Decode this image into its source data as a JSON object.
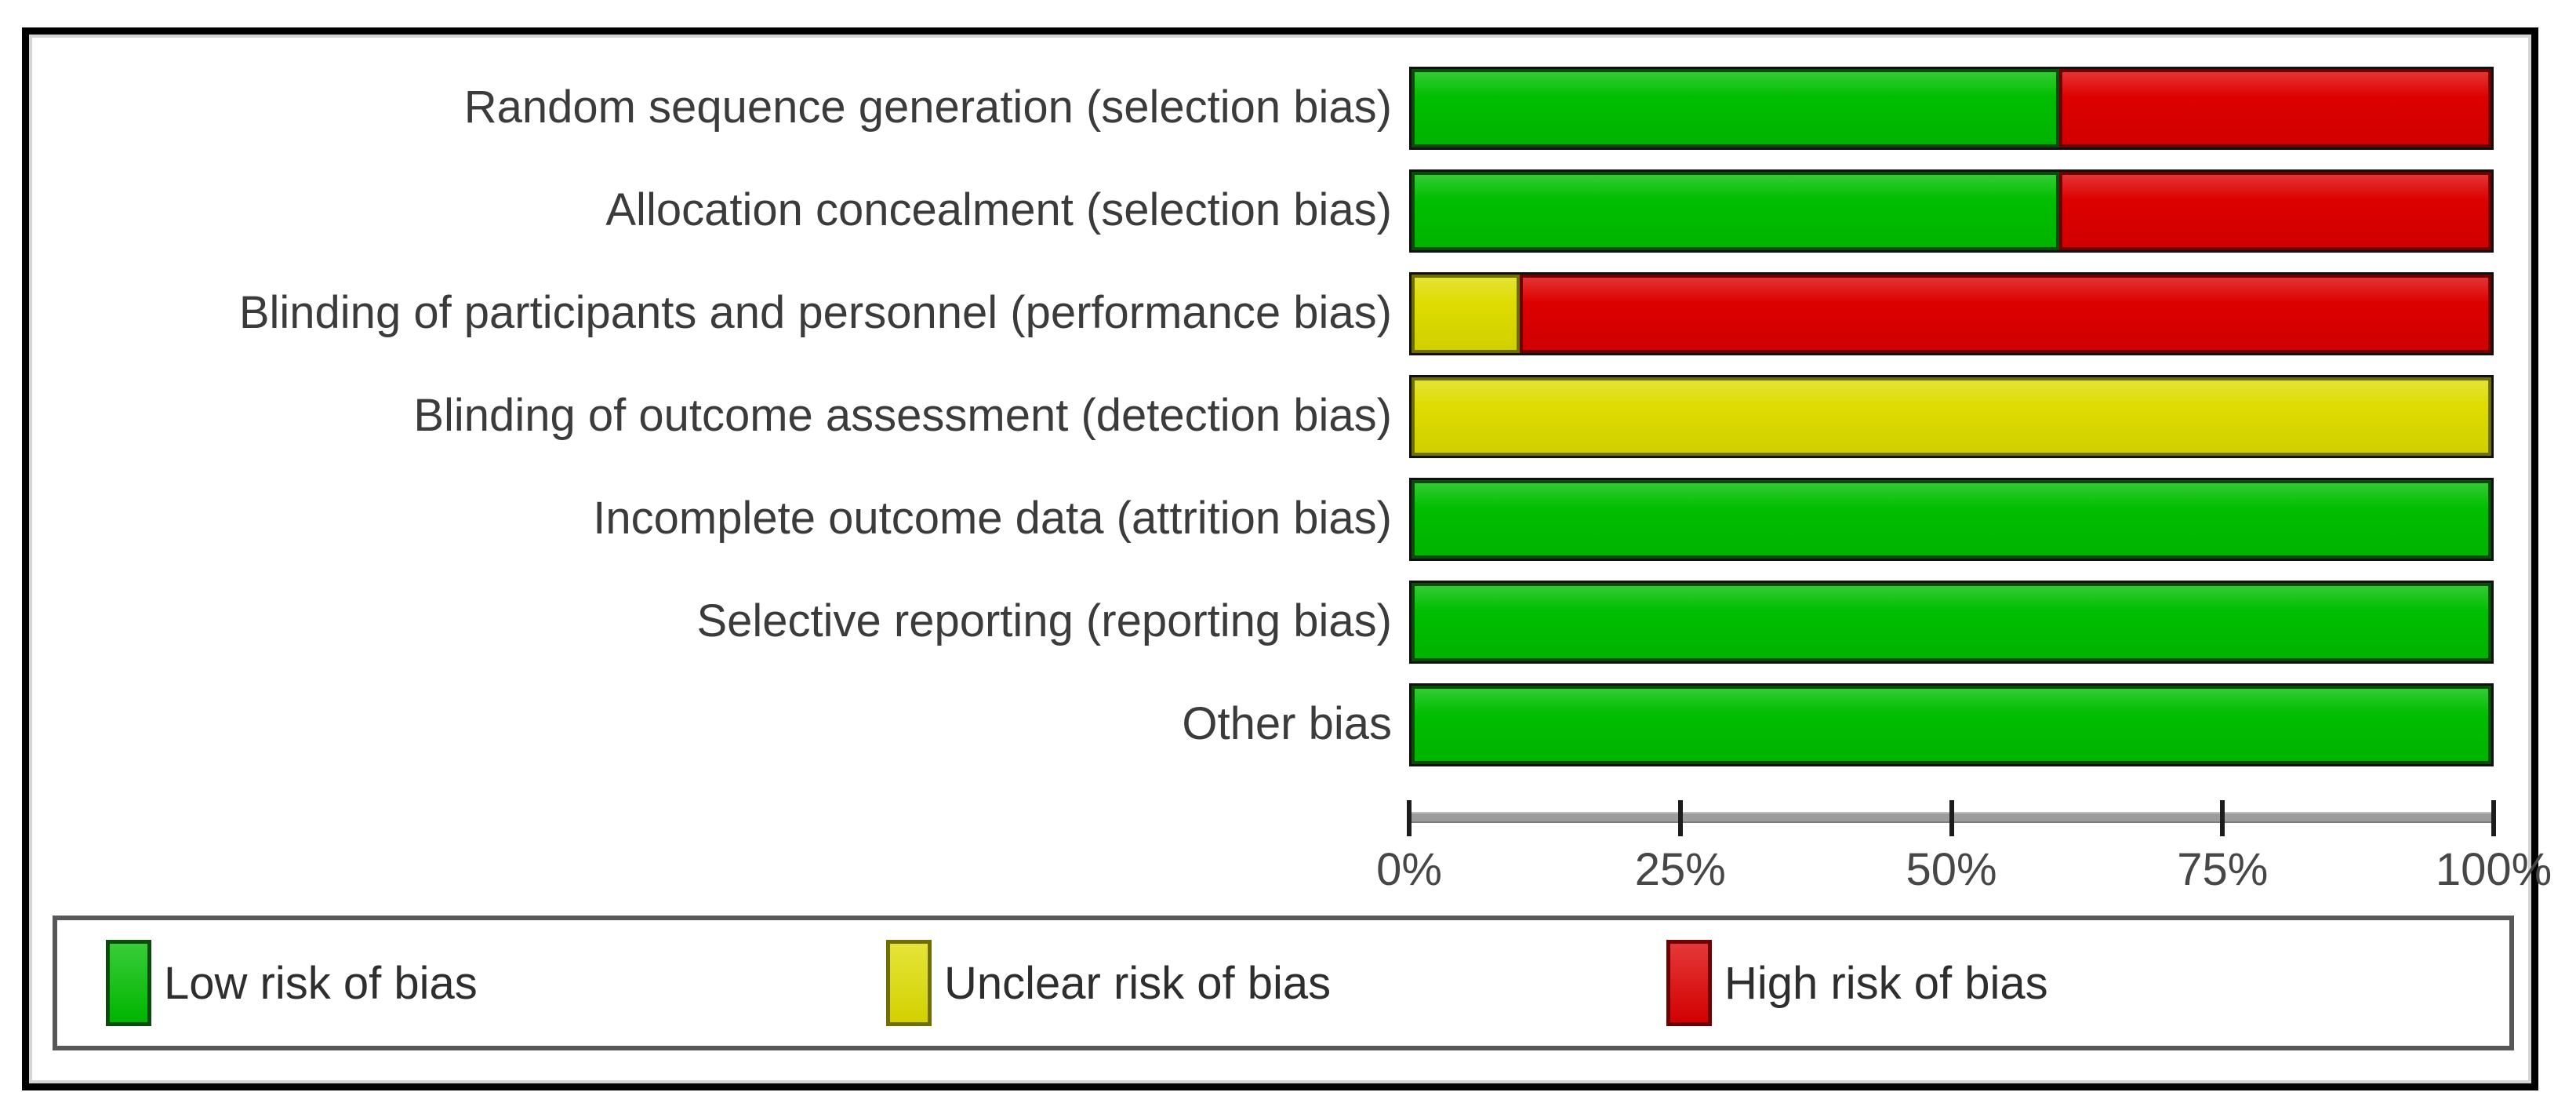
{
  "chart_data": {
    "type": "bar",
    "orientation": "horizontal",
    "stacked": true,
    "categories": [
      "Random sequence generation (selection bias)",
      "Allocation concealment (selection bias)",
      "Blinding of participants and personnel (performance bias)",
      "Blinding of outcome assessment (detection bias)",
      "Incomplete outcome data (attrition bias)",
      "Selective reporting (reporting bias)",
      "Other bias"
    ],
    "series": [
      {
        "key": "low",
        "name": "Low risk of bias",
        "color": "#00be00",
        "edge": "#0a4d0a",
        "values": [
          60,
          60,
          0,
          0,
          100,
          100,
          100
        ]
      },
      {
        "key": "unclear",
        "name": "Unclear risk of bias",
        "color": "#dedc00",
        "edge": "#6f6f00",
        "values": [
          0,
          0,
          10,
          100,
          0,
          0,
          0
        ]
      },
      {
        "key": "high",
        "name": "High risk of bias",
        "color": "#dd0000",
        "edge": "#6e0000",
        "values": [
          40,
          40,
          90,
          0,
          0,
          0,
          0
        ]
      }
    ],
    "x_ticks": [
      "0%",
      "25%",
      "50%",
      "75%",
      "100%"
    ],
    "xlim": [
      0,
      100
    ],
    "grid": false,
    "legend_position": "bottom",
    "colors": {
      "axis_line": "#9c9c9c",
      "tick": "#1c1c1c",
      "label_text": "#3b3b3b",
      "frame_border": "#000000",
      "legend_border": "#57575a",
      "background": "#ffffff"
    }
  }
}
